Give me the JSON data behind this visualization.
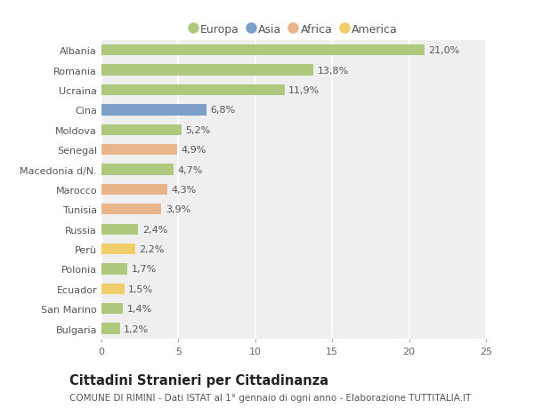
{
  "categories": [
    "Albania",
    "Romania",
    "Ucraina",
    "Cina",
    "Moldova",
    "Senegal",
    "Macedonia d/N.",
    "Marocco",
    "Tunisia",
    "Russia",
    "Perù",
    "Polonia",
    "Ecuador",
    "San Marino",
    "Bulgaria"
  ],
  "values": [
    21.0,
    13.8,
    11.9,
    6.8,
    5.2,
    4.9,
    4.7,
    4.3,
    3.9,
    2.4,
    2.2,
    1.7,
    1.5,
    1.4,
    1.2
  ],
  "labels": [
    "21,0%",
    "13,8%",
    "11,9%",
    "6,8%",
    "5,2%",
    "4,9%",
    "4,7%",
    "4,3%",
    "3,9%",
    "2,4%",
    "2,2%",
    "1,7%",
    "1,5%",
    "1,4%",
    "1,2%"
  ],
  "continents": [
    "Europa",
    "Europa",
    "Europa",
    "Asia",
    "Europa",
    "Africa",
    "Europa",
    "Africa",
    "Africa",
    "Europa",
    "America",
    "Europa",
    "America",
    "Europa",
    "Europa"
  ],
  "colors": {
    "Europa": "#aec97e",
    "Asia": "#7b9fc7",
    "Africa": "#e8b48a",
    "America": "#f0cf6a"
  },
  "legend_items": [
    "Europa",
    "Asia",
    "Africa",
    "America"
  ],
  "xlim": [
    0,
    25
  ],
  "xticks": [
    0,
    5,
    10,
    15,
    20,
    25
  ],
  "title": "Cittadini Stranieri per Cittadinanza",
  "subtitle": "COMUNE DI RIMINI - Dati ISTAT al 1° gennaio di ogni anno - Elaborazione TUTTITALIA.IT",
  "bg_color": "#ffffff",
  "plot_bg_color": "#efefef",
  "grid_color": "#ffffff",
  "bar_height": 0.55,
  "title_fontsize": 10.5,
  "subtitle_fontsize": 7.5,
  "label_fontsize": 8,
  "tick_fontsize": 8,
  "legend_fontsize": 9
}
